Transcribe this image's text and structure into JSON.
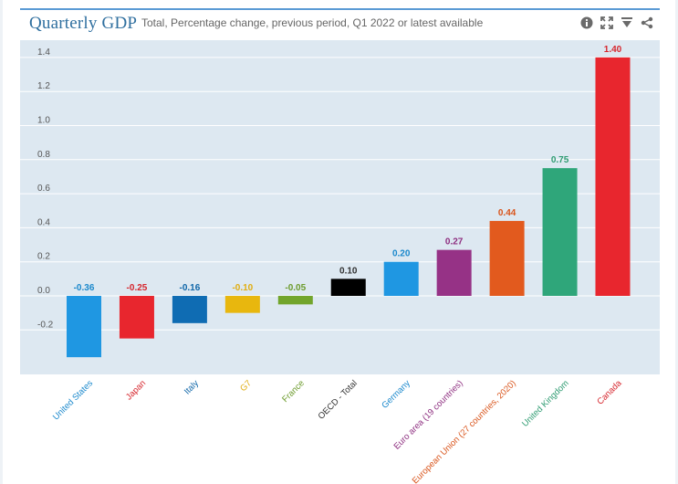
{
  "header": {
    "title": "Quarterly GDP",
    "subtitle": "Total, Percentage change, previous period, Q1 2022 or latest available"
  },
  "toolbar": {
    "icons": [
      "info-icon",
      "fullscreen-icon",
      "download-icon",
      "share-icon"
    ]
  },
  "colors": {
    "plot_bg": "#dde8f1",
    "grid": "#ffffff",
    "title": "#2f6f9f"
  },
  "chart_data": {
    "type": "bar",
    "title": "Quarterly GDP",
    "subtitle": "Total, Percentage change, previous period, Q1 2022 or latest available",
    "xlabel": "",
    "ylabel": "",
    "ylim": [
      -0.47,
      1.45
    ],
    "yticks": [
      -0.2,
      0.0,
      0.2,
      0.4,
      0.6,
      0.8,
      1.0,
      1.2,
      1.4
    ],
    "ytick_labels": [
      "-0.2",
      "0.0",
      "0.2",
      "0.4",
      "0.6",
      "0.8",
      "1.0",
      "1.2",
      "1.4"
    ],
    "grid": true,
    "categories": [
      "United States",
      "Japan",
      "Italy",
      "G7",
      "France",
      "OECD - Total",
      "Germany",
      "Euro area (19 countries)",
      "European Union (27 countries, 2020)",
      "United Kingdom",
      "Canada"
    ],
    "values": [
      -0.36,
      -0.25,
      -0.16,
      -0.1,
      -0.05,
      0.1,
      0.2,
      0.27,
      0.44,
      0.75,
      1.4
    ],
    "value_labels": [
      "-0.36",
      "-0.25",
      "-0.16",
      "-0.10",
      "-0.05",
      "0.10",
      "0.20",
      "0.27",
      "0.44",
      "0.75",
      "1.40"
    ],
    "colors": [
      "#1f97e2",
      "#e8262e",
      "#0f6cb3",
      "#e8b70e",
      "#72a52c",
      "#000000",
      "#1f97e2",
      "#963286",
      "#e25a1e",
      "#2fa67a",
      "#e8262e"
    ],
    "label_colors": [
      "#1a88cc",
      "#d6262d",
      "#0f66a8",
      "#e0ad10",
      "#6c9b2c",
      "#333333",
      "#1a88cc",
      "#8e2f80",
      "#d9541b",
      "#2f9c72",
      "#d6262d"
    ]
  }
}
